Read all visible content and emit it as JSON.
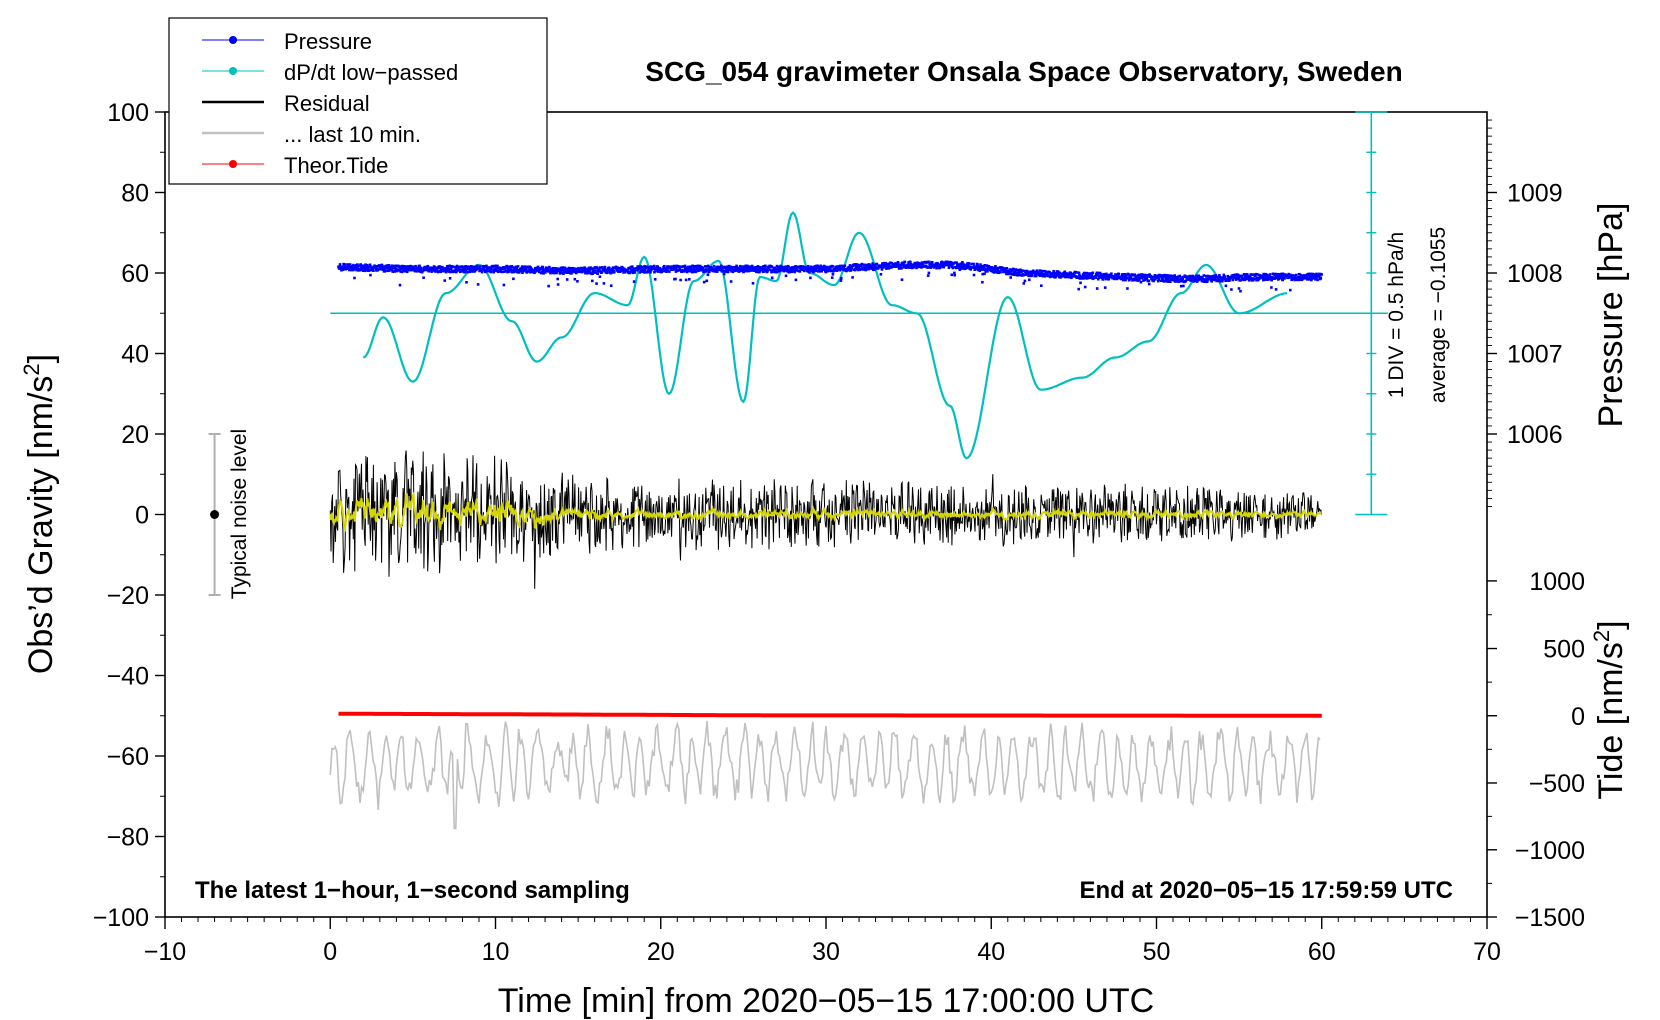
{
  "chart_data": {
    "type": "line",
    "title": "SCG_054 gravimeter Onsala Space Observatory, Sweden",
    "xlabel": "Time [min] from 2020−05−15 17:00:00 UTC",
    "ylabel_main": "Obs’d Gravity [nm/s",
    "ylabel_sup": "2",
    "ylabel_close": "]",
    "y2label": "Pressure [hPa]",
    "y3label_main": "Tide [nm/s",
    "y3label_sup": "2",
    "y3label_close": "]",
    "xlim": [
      -10,
      70
    ],
    "ylim": [
      -100,
      100
    ],
    "x_ticks": [
      "−10",
      "0",
      "10",
      "20",
      "30",
      "40",
      "50",
      "60",
      "70"
    ],
    "x_tick_values": [
      -10,
      0,
      10,
      20,
      30,
      40,
      50,
      60,
      70
    ],
    "y_ticks": [
      "100",
      "80",
      "60",
      "40",
      "20",
      "0",
      "−20",
      "−40",
      "−60",
      "−80",
      "−100"
    ],
    "y_tick_values": [
      100,
      80,
      60,
      40,
      20,
      0,
      -20,
      -40,
      -60,
      -80,
      -100
    ],
    "pressure_axis": {
      "ticks": [
        "1009",
        "1008",
        "1007",
        "1006"
      ],
      "values": [
        1009,
        1008,
        1007,
        1006
      ],
      "gravity_equiv": [
        80,
        60,
        40,
        20
      ]
    },
    "tide_axis": {
      "ticks": [
        "1000",
        "500",
        "0",
        "−500",
        "−1000",
        "−1500"
      ],
      "values": [
        1000,
        500,
        0,
        -500,
        -1000,
        -1500
      ],
      "gravity_equiv": [
        -16.5,
        -33.3,
        -50,
        -66.7,
        -83.3,
        -100
      ]
    },
    "dpdt_scale": {
      "label_div": "1 DIV = 0.5 hPa/h",
      "label_avg": "average = −0.1055",
      "x": 63,
      "y_range": [
        0,
        100
      ],
      "baseline_y": 50
    },
    "noise_level": {
      "label": "Typical noise level",
      "x": -7,
      "center": 0,
      "range": [
        -20,
        20
      ]
    },
    "series": [
      {
        "name": "Pressure",
        "color": "#0000ff",
        "style": "dots",
        "x": [
          0.5,
          5,
          10,
          15,
          20,
          25,
          30,
          35,
          38,
          42,
          48,
          52,
          56,
          60
        ],
        "values": [
          61.5,
          61,
          61,
          60.5,
          61,
          61,
          61,
          62,
          62,
          60,
          59,
          58.5,
          59,
          59
        ]
      },
      {
        "name": "dP/dt low−passed",
        "color": "#00bfbf",
        "style": "line",
        "x": [
          2,
          3.2,
          5,
          7,
          9,
          11,
          12.5,
          14,
          16,
          18,
          19,
          20.5,
          22,
          23.5,
          25,
          26,
          27,
          28,
          29,
          30.5,
          32,
          34,
          35.5,
          37.5,
          38.5,
          41,
          43,
          45.5,
          47.5,
          49.5,
          51.5,
          53,
          55,
          58
        ],
        "values": [
          39,
          49,
          33,
          55,
          62,
          48,
          38,
          44,
          55,
          52,
          64,
          30,
          58,
          63,
          28,
          59,
          58,
          75,
          60,
          57,
          70,
          52,
          50,
          27,
          14,
          54,
          31,
          34,
          39,
          43,
          55,
          62,
          50,
          55
        ]
      },
      {
        "name": "Residual",
        "color": "#000000",
        "style": "line",
        "x_range": [
          0,
          60
        ],
        "amplitude_envelope": {
          "x": [
            0,
            5,
            10,
            15,
            20,
            30,
            40,
            50,
            60
          ],
          "amp": [
            15,
            17,
            15,
            10,
            9,
            9,
            8,
            8,
            6
          ]
        },
        "center": 0
      },
      {
        "name": "... last 10 min.",
        "color": "#c0c0c0",
        "style": "line",
        "x_range": [
          0,
          60
        ],
        "center": -62,
        "amplitude": 9
      },
      {
        "name": "Theor.Tide",
        "color": "#ff0000",
        "style": "dots",
        "x": [
          0.5,
          15,
          26,
          60
        ],
        "values": [
          -49.5,
          -49.7,
          -49.9,
          -50
        ]
      }
    ],
    "legend": {
      "position": "top-left",
      "entries": [
        "Pressure",
        "dP/dt low−passed",
        "Residual",
        "... last 10 min.",
        "Theor.Tide"
      ]
    },
    "annotations": [
      "The latest 1−hour, 1−second sampling",
      "End at 2020−05−15 17:59:59 UTC"
    ],
    "smoothed_color": "#d4d400"
  }
}
